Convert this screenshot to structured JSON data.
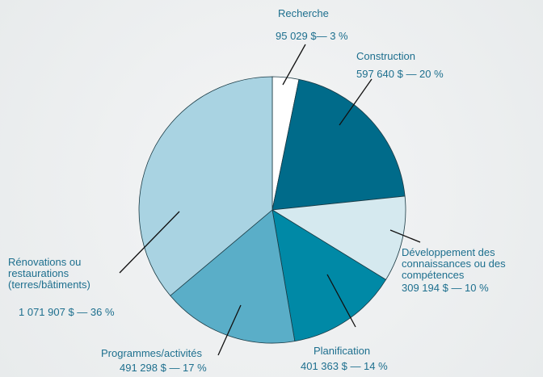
{
  "chart_data": {
    "type": "pie",
    "categories": [
      "Recherche",
      "Construction",
      "Développement des connaissances ou des compétences",
      "Planification",
      "Programmes/activités",
      "Rénovations ou restaurations (terres/bâtiments)"
    ],
    "values": [
      95029,
      597640,
      309194,
      401363,
      491298,
      1071907
    ],
    "value_labels": [
      "95 029 $— 3 %",
      "597 640 $ — 20 %",
      "309 194 $ — 10 %",
      "401 363 $ — 14 %",
      "491 298 $ — 17 %",
      "1 071 907 $ — 36 %"
    ],
    "colors": [
      "#ffffff",
      "#006b8a",
      "#d5e9ef",
      "#0089a6",
      "#5aaec8",
      "#a9d3e2"
    ]
  }
}
